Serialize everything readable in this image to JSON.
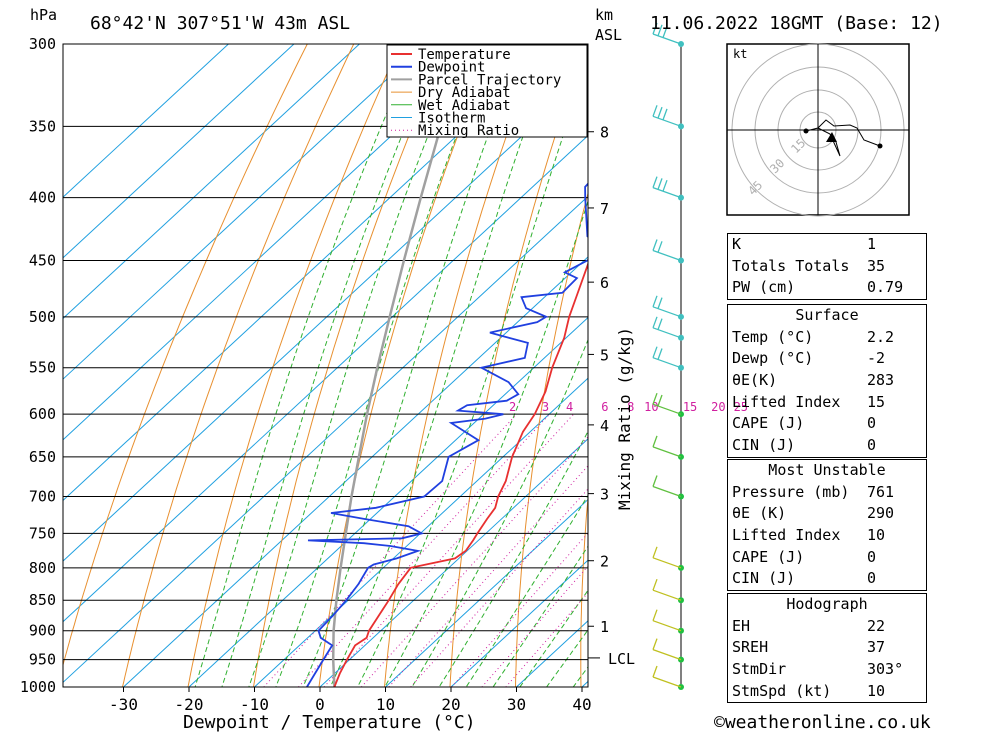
{
  "header": {
    "pressure_unit": "hPa",
    "location": "68°42'N 307°51'W 43m ASL",
    "km_label": "km",
    "asl_label": "ASL",
    "datetime": "11.06.2022 18GMT (Base: 12)"
  },
  "chart_data": {
    "type": "skew-t",
    "xlabel": "Dewpoint / Temperature (°C)",
    "ylabel_left": "hPa",
    "ylabel_right": "Mixing Ratio (g/kg)",
    "pressure_ticks": [
      300,
      350,
      400,
      450,
      500,
      550,
      600,
      650,
      700,
      750,
      800,
      850,
      900,
      950,
      1000
    ],
    "temp_ticks": [
      -30,
      -20,
      -10,
      0,
      10,
      20,
      30,
      40
    ],
    "km_ticks": [
      1,
      2,
      3,
      4,
      5,
      6,
      7,
      8
    ],
    "lcl_label": "LCL",
    "mixing_ratio_labels": [
      "2",
      "3",
      "4",
      "6",
      "8",
      "10",
      "15",
      "20",
      "25"
    ],
    "legend": [
      "Temperature",
      "Dewpoint",
      "Parcel Trajectory",
      "Dry Adiabat",
      "Wet Adiabat",
      "Isotherm",
      "Mixing Ratio"
    ],
    "colors": {
      "temperature": "#e83030",
      "dewpoint": "#2040e0",
      "parcel": "#a0a0a0",
      "dry_adiabat": "#e89030",
      "wet_adiabat": "#30b030",
      "isotherm": "#20a0e0",
      "mixing_ratio": "#d020a0",
      "wind": "#40c0c0"
    },
    "temperature_profile": [
      [
        1000,
        2.2
      ],
      [
        975,
        0.8
      ],
      [
        950,
        -0.4
      ],
      [
        925,
        -1.5
      ],
      [
        912,
        -1.0
      ],
      [
        900,
        -1.8
      ],
      [
        875,
        -2.8
      ],
      [
        850,
        -3.8
      ],
      [
        825,
        -5.0
      ],
      [
        800,
        -5.8
      ],
      [
        795,
        -4.0
      ],
      [
        786,
        -0.6
      ],
      [
        775,
        -0.2
      ],
      [
        760,
        -0.8
      ],
      [
        750,
        -1.3
      ],
      [
        730,
        -2.2
      ],
      [
        715,
        -2.8
      ],
      [
        700,
        -4.2
      ],
      [
        680,
        -5.6
      ],
      [
        650,
        -8.6
      ],
      [
        620,
        -11.1
      ],
      [
        600,
        -12.2
      ],
      [
        575,
        -14.3
      ],
      [
        550,
        -17.2
      ],
      [
        520,
        -20.3
      ],
      [
        500,
        -23.0
      ],
      [
        480,
        -25.4
      ],
      [
        460,
        -27.9
      ],
      [
        450,
        -29.2
      ],
      [
        425,
        -32.8
      ],
      [
        400,
        -36.0
      ],
      [
        375,
        -39.5
      ],
      [
        350,
        -43.3
      ],
      [
        325,
        -47.3
      ],
      [
        315,
        -48.8
      ],
      [
        300,
        -49.3
      ]
    ],
    "dewpoint_profile": [
      [
        1000,
        -2.0
      ],
      [
        975,
        -3.0
      ],
      [
        950,
        -4.0
      ],
      [
        925,
        -5.0
      ],
      [
        912,
        -8.0
      ],
      [
        900,
        -9.5
      ],
      [
        875,
        -9.8
      ],
      [
        850,
        -10.3
      ],
      [
        825,
        -11.1
      ],
      [
        800,
        -12.3
      ],
      [
        795,
        -12.0
      ],
      [
        786,
        -9.5
      ],
      [
        775,
        -7.5
      ],
      [
        768,
        -12.5
      ],
      [
        764,
        -17.0
      ],
      [
        760,
        -26.0
      ],
      [
        757,
        -12.0
      ],
      [
        750,
        -9.8
      ],
      [
        740,
        -13.0
      ],
      [
        730,
        -21.0
      ],
      [
        722,
        -27.0
      ],
      [
        715,
        -21.0
      ],
      [
        700,
        -15.5
      ],
      [
        680,
        -15.3
      ],
      [
        650,
        -18.3
      ],
      [
        630,
        -16.5
      ],
      [
        610,
        -23.5
      ],
      [
        605,
        -19.0
      ],
      [
        600,
        -17.0
      ],
      [
        596,
        -24.5
      ],
      [
        590,
        -24.0
      ],
      [
        585,
        -18.7
      ],
      [
        578,
        -18.0
      ],
      [
        565,
        -21.5
      ],
      [
        550,
        -28.0
      ],
      [
        540,
        -23.0
      ],
      [
        525,
        -25.0
      ],
      [
        515,
        -32.5
      ],
      [
        505,
        -27.0
      ],
      [
        500,
        -26.5
      ],
      [
        492,
        -31.0
      ],
      [
        482,
        -33.5
      ],
      [
        478,
        -28.0
      ],
      [
        465,
        -28.2
      ],
      [
        460,
        -31.0
      ],
      [
        450,
        -29.5
      ],
      [
        440,
        -29.0
      ],
      [
        430,
        -33.5
      ],
      [
        400,
        -40.2
      ],
      [
        392,
        -42.0
      ],
      [
        350,
        -43.5
      ],
      [
        320,
        -48.0
      ],
      [
        315,
        -50.3
      ],
      [
        310,
        -56.0
      ],
      [
        300,
        -61.0
      ]
    ],
    "parcel_profile": [
      [
        1000,
        2.2
      ],
      [
        950,
        -2.5
      ],
      [
        900,
        -7.2
      ],
      [
        850,
        -11.8
      ],
      [
        800,
        -16.5
      ],
      [
        750,
        -21.4
      ],
      [
        700,
        -26.6
      ],
      [
        650,
        -32.0
      ],
      [
        600,
        -37.8
      ],
      [
        550,
        -43.9
      ],
      [
        500,
        -50.4
      ],
      [
        450,
        -57.5
      ],
      [
        400,
        -65.3
      ],
      [
        350,
        -74.0
      ],
      [
        300,
        -84.0
      ]
    ],
    "wind_levels": [
      300,
      350,
      400,
      450,
      500,
      520,
      550,
      600,
      650,
      700,
      800,
      850,
      900,
      950,
      1000
    ],
    "hodograph": {
      "unit": "kt",
      "ring_labels": [
        "15",
        "30",
        "45"
      ]
    }
  },
  "indices": {
    "rows": [
      {
        "label": "K",
        "value": "1"
      },
      {
        "label": "Totals Totals",
        "value": "35"
      },
      {
        "label": "PW (cm)",
        "value": "0.79"
      }
    ]
  },
  "surface": {
    "title": "Surface",
    "rows": [
      {
        "label": "Temp (°C)",
        "value": "2.2"
      },
      {
        "label": "Dewp (°C)",
        "value": "-2"
      },
      {
        "label": "θE(K)",
        "value": "283"
      },
      {
        "label": "Lifted Index",
        "value": "15"
      },
      {
        "label": "CAPE (J)",
        "value": "0"
      },
      {
        "label": "CIN (J)",
        "value": "0"
      }
    ]
  },
  "most_unstable": {
    "title": "Most Unstable",
    "rows": [
      {
        "label": "Pressure (mb)",
        "value": "761"
      },
      {
        "label": "θE (K)",
        "value": "290"
      },
      {
        "label": "Lifted Index",
        "value": "10"
      },
      {
        "label": "CAPE (J)",
        "value": "0"
      },
      {
        "label": "CIN (J)",
        "value": "0"
      }
    ]
  },
  "hodograph_stats": {
    "title": "Hodograph",
    "rows": [
      {
        "label": "EH",
        "value": "22"
      },
      {
        "label": "SREH",
        "value": "37"
      },
      {
        "label": "StmDir",
        "value": "303°"
      },
      {
        "label": "StmSpd (kt)",
        "value": "10"
      }
    ]
  },
  "footer": {
    "copyright": "©weatheronline.co.uk"
  }
}
